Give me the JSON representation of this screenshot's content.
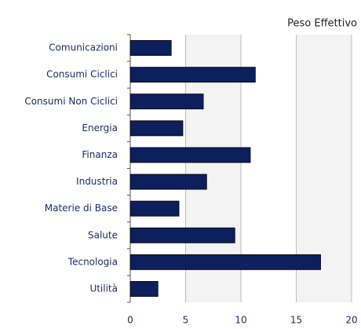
{
  "chart_data": {
    "type": "barh",
    "title": "Peso Effettivo",
    "categories": [
      "Comunicazioni",
      "Consumi Ciclici",
      "Consumi Non Ciclici",
      "Energia",
      "Finanza",
      "Industria",
      "Materie di Base",
      "Salute",
      "Tecnologia",
      "Utilità"
    ],
    "values": [
      3.7,
      11.3,
      6.6,
      4.75,
      10.85,
      6.9,
      4.4,
      9.45,
      17.2,
      2.5
    ],
    "color": "#0d1f5c",
    "xlim": [
      0,
      20
    ],
    "xticks": [
      0,
      5,
      10,
      15,
      20
    ],
    "grid": true
  }
}
